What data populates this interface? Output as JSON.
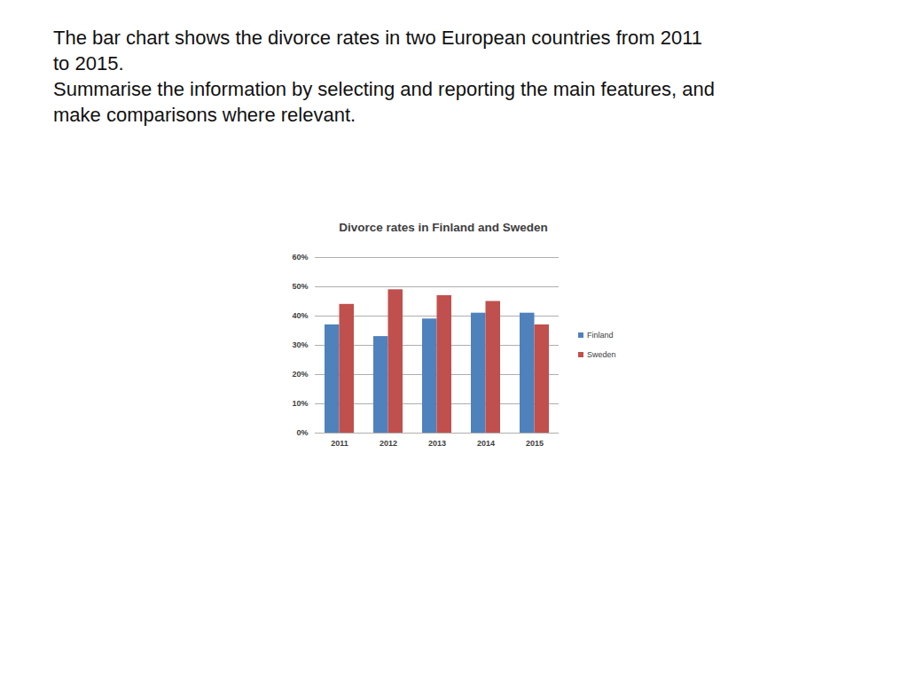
{
  "header": {
    "lines": [
      "The bar chart shows the divorce rates in two European countries from 2011",
      "to 2015.",
      "Summarise the information by selecting and reporting the main features, and",
      "make comparisons where relevant."
    ]
  },
  "chart_data": {
    "type": "bar",
    "title": "Divorce rates in Finland and Sweden",
    "categories": [
      "2011",
      "2012",
      "2013",
      "2014",
      "2015"
    ],
    "series": [
      {
        "name": "Finland",
        "color": "#4f81bd",
        "values": [
          37,
          33,
          39,
          41,
          41
        ]
      },
      {
        "name": "Sweden",
        "color": "#c0504d",
        "values": [
          44,
          49,
          47,
          45,
          37
        ]
      }
    ],
    "ylim": [
      0,
      60
    ],
    "yticks": [
      {
        "value": 0,
        "label": "0%"
      },
      {
        "value": 10,
        "label": "10%"
      },
      {
        "value": 20,
        "label": "20%"
      },
      {
        "value": 30,
        "label": "30%"
      },
      {
        "value": 40,
        "label": "40%"
      },
      {
        "value": 50,
        "label": "50%"
      },
      {
        "value": 60,
        "label": "60%"
      }
    ],
    "grid": true,
    "legend": "right"
  }
}
